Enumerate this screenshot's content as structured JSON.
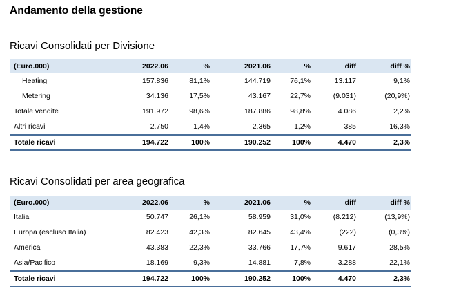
{
  "page": {
    "title": "Andamento della gestione"
  },
  "divisione": {
    "title": "Ricavi Consolidati per Divisione",
    "headers": [
      "(Euro.000)",
      "2022.06",
      "%",
      "2021.06",
      "%",
      "diff",
      "diff %"
    ],
    "rows": [
      [
        "Heating",
        "157.836",
        "81,1%",
        "144.719",
        "76,1%",
        "13.117",
        "9,1%"
      ],
      [
        "Metering",
        "34.136",
        "17,5%",
        "43.167",
        "22,7%",
        "(9.031)",
        "(20,9%)"
      ],
      [
        "Totale vendite",
        "191.972",
        "98,6%",
        "187.886",
        "98,8%",
        "4.086",
        "2,2%"
      ],
      [
        "Altri ricavi",
        "2.750",
        "1,4%",
        "2.365",
        "1,2%",
        "385",
        "16,3%"
      ]
    ],
    "total": [
      "Totale ricavi",
      "194.722",
      "100%",
      "190.252",
      "100%",
      "4.470",
      "2,3%"
    ]
  },
  "area": {
    "title": "Ricavi Consolidati per area geografica",
    "headers": [
      "(Euro.000)",
      "2022.06",
      "%",
      "2021.06",
      "%",
      "diff",
      "diff %"
    ],
    "rows": [
      [
        "Italia",
        "50.747",
        "26,1%",
        "58.959",
        "31,0%",
        "(8.212)",
        "(13,9%)"
      ],
      [
        "Europa (escluso Italia)",
        "82.423",
        "42,3%",
        "82.645",
        "43,4%",
        "(222)",
        "(0,3%)"
      ],
      [
        "America",
        "43.383",
        "22,3%",
        "33.766",
        "17,7%",
        "9.617",
        "28,5%"
      ],
      [
        "Asia/Pacifico",
        "18.169",
        "9,3%",
        "14.881",
        "7,8%",
        "3.288",
        "22,1%"
      ]
    ],
    "total": [
      "Totale ricavi",
      "194.722",
      "100%",
      "190.252",
      "100%",
      "4.470",
      "2,3%"
    ]
  }
}
